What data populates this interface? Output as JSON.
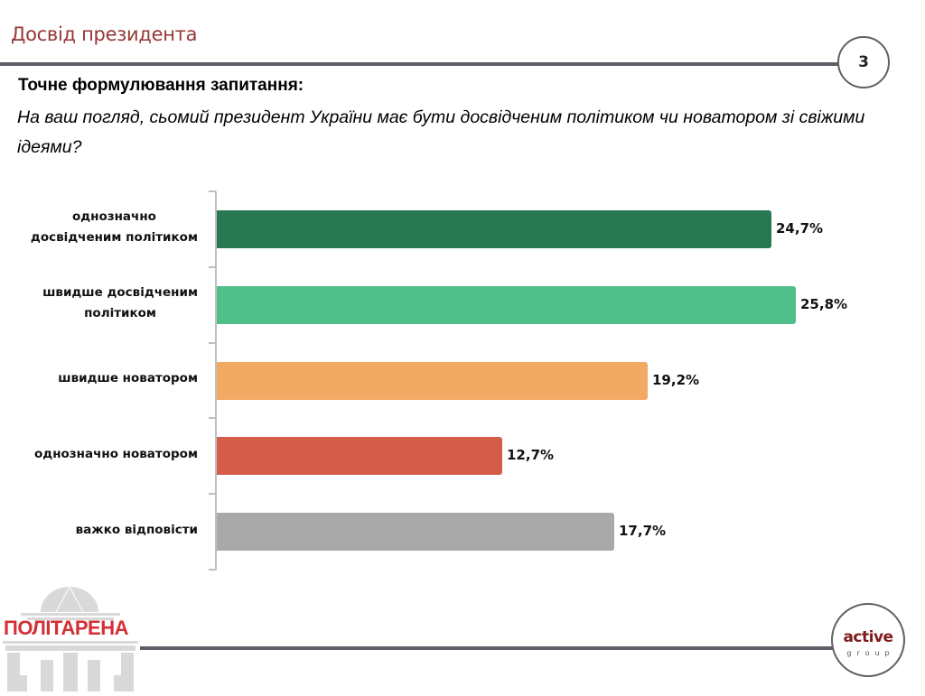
{
  "header": {
    "title": "Досвід президента",
    "page_number": "3"
  },
  "question": {
    "label": "Точне формулювання запитання:",
    "text": "На ваш погляд, сьомий президент України має бути досвідченим політиком чи новатором зі свіжими ідеями?"
  },
  "chart_data": {
    "type": "bar",
    "orientation": "horizontal",
    "categories": [
      "однозначно досвідченим політиком",
      "швидше досвідченим політиком",
      "швидше новатором",
      "однозначно новатором",
      "важко відповісти"
    ],
    "category_lines": [
      [
        "однозначно",
        "досвідченим політиком"
      ],
      [
        "швидше досвідченим",
        "політиком"
      ],
      [
        "швидше новатором"
      ],
      [
        "однозначно новатором"
      ],
      [
        "важко відповісти"
      ]
    ],
    "values": [
      24.7,
      25.8,
      19.2,
      12.7,
      17.7
    ],
    "value_labels": [
      "24,7%",
      "25,8%",
      "19,2%",
      "12,7%",
      "17,7%"
    ],
    "colors": [
      "#287852",
      "#50bf8a",
      "#f2a964",
      "#d45c4b",
      "#a9a9a9"
    ],
    "unit": "%",
    "xlim": [
      0,
      30
    ],
    "grid": false,
    "legend": "none",
    "title": "",
    "xlabel": "",
    "ylabel": ""
  },
  "footer": {
    "left_logo": "ПОЛІТАРЕНА",
    "right_logo_main": "active",
    "right_logo_sub": "group"
  }
}
